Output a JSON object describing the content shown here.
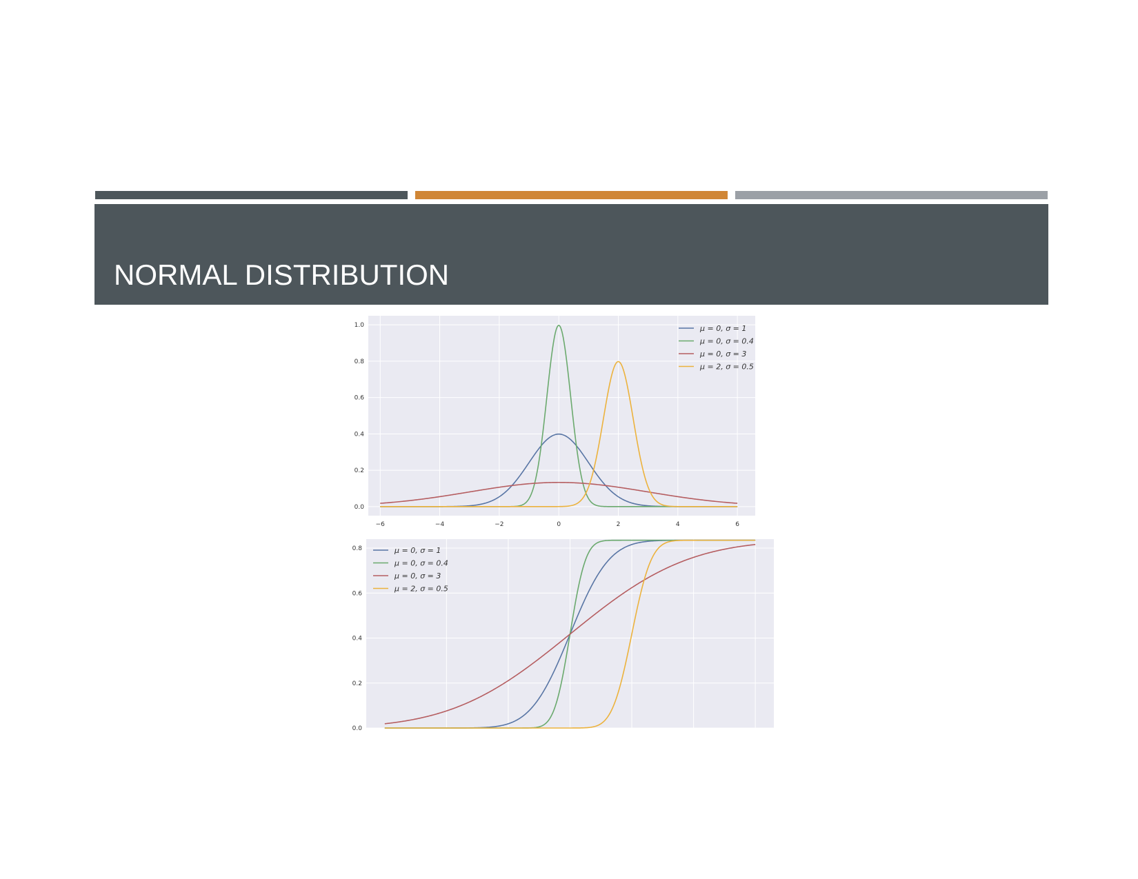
{
  "slide": {
    "title": "NORMAL DISTRIBUTION",
    "colors": {
      "title_band": "#4d565b",
      "bar_1": "#4d565b",
      "bar_2": "#d08636",
      "bar_3": "#9ba0a6",
      "plot_bg": "#eaeaf2",
      "grid": "#ffffff"
    }
  },
  "chart_data": [
    {
      "type": "line",
      "title": "",
      "xlabel": "",
      "ylabel": "",
      "xlim": [
        -6.4,
        6.6
      ],
      "ylim": [
        -0.05,
        1.05
      ],
      "xticks": [
        "−6",
        "−4",
        "−2",
        "0",
        "2",
        "4",
        "6"
      ],
      "yticks": [
        "0.0",
        "0.2",
        "0.4",
        "0.6",
        "0.8",
        "1.0"
      ],
      "grid": true,
      "legend_position": "top-right",
      "x_range": [
        -6,
        6
      ],
      "series": [
        {
          "name": "μ = 0, σ = 1",
          "mu": 0,
          "sigma": 1,
          "color": "#5875a4"
        },
        {
          "name": "μ = 0, σ = 0.4",
          "mu": 0,
          "sigma": 0.4,
          "color": "#6aa96d"
        },
        {
          "name": "μ = 0, σ = 3",
          "mu": 0,
          "sigma": 3,
          "color": "#b55d60"
        },
        {
          "name": "μ = 2, σ = 0.5",
          "mu": 2,
          "sigma": 0.5,
          "color": "#ecb23c"
        }
      ]
    },
    {
      "type": "line",
      "title": "",
      "xlabel": "",
      "ylabel": "",
      "xlim": [
        -6.6,
        6.6
      ],
      "ylim": [
        0,
        0.84
      ],
      "xticks": [],
      "yticks": [
        "0.0",
        "0.2",
        "0.4",
        "0.6",
        "0.8"
      ],
      "grid": true,
      "legend_position": "top-left",
      "x_range": [
        -6,
        6
      ],
      "series": [
        {
          "name": "μ = 0, σ = 1",
          "mu": 0,
          "sigma": 1,
          "color": "#5875a4"
        },
        {
          "name": "μ = 0, σ = 0.4",
          "mu": 0,
          "sigma": 0.4,
          "color": "#6aa96d"
        },
        {
          "name": "μ = 0, σ = 3",
          "mu": 0,
          "sigma": 3,
          "color": "#b55d60"
        },
        {
          "name": "μ = 2, σ = 0.5",
          "mu": 2,
          "sigma": 0.5,
          "color": "#ecb23c"
        }
      ]
    }
  ]
}
